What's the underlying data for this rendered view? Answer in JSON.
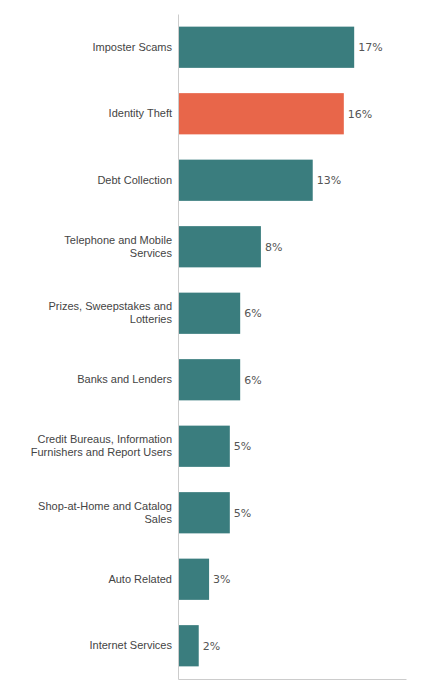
{
  "chart_data": {
    "type": "bar",
    "orientation": "horizontal",
    "categories": [
      "Internet Services",
      "Auto Related",
      "Shop-at-Home and Catalog\nSales",
      "Credit Bureaus, Information\nFurnishers and Report Users",
      "Banks and Lenders",
      "Prizes, Sweepstakes and\nLotteries",
      "Telephone and Mobile\nServices",
      "Debt Collection",
      "Identity Theft",
      "Imposter Scams"
    ],
    "values": [
      2,
      3,
      5,
      5,
      6,
      6,
      8,
      13,
      16,
      17
    ],
    "value_labels": [
      "2%",
      "3%",
      "5%",
      "5%",
      "6%",
      "6%",
      "8%",
      "13%",
      "16%",
      "17%"
    ],
    "colors": [
      "#3a7d7e",
      "#3a7d7e",
      "#3a7d7e",
      "#3a7d7e",
      "#3a7d7e",
      "#3a7d7e",
      "#3a7d7e",
      "#3a7d7e",
      "#e8664a",
      "#3a7d7e"
    ],
    "xlim": [
      0,
      22
    ],
    "data_labels": true,
    "tick_labels": "y",
    "grid": false
  }
}
